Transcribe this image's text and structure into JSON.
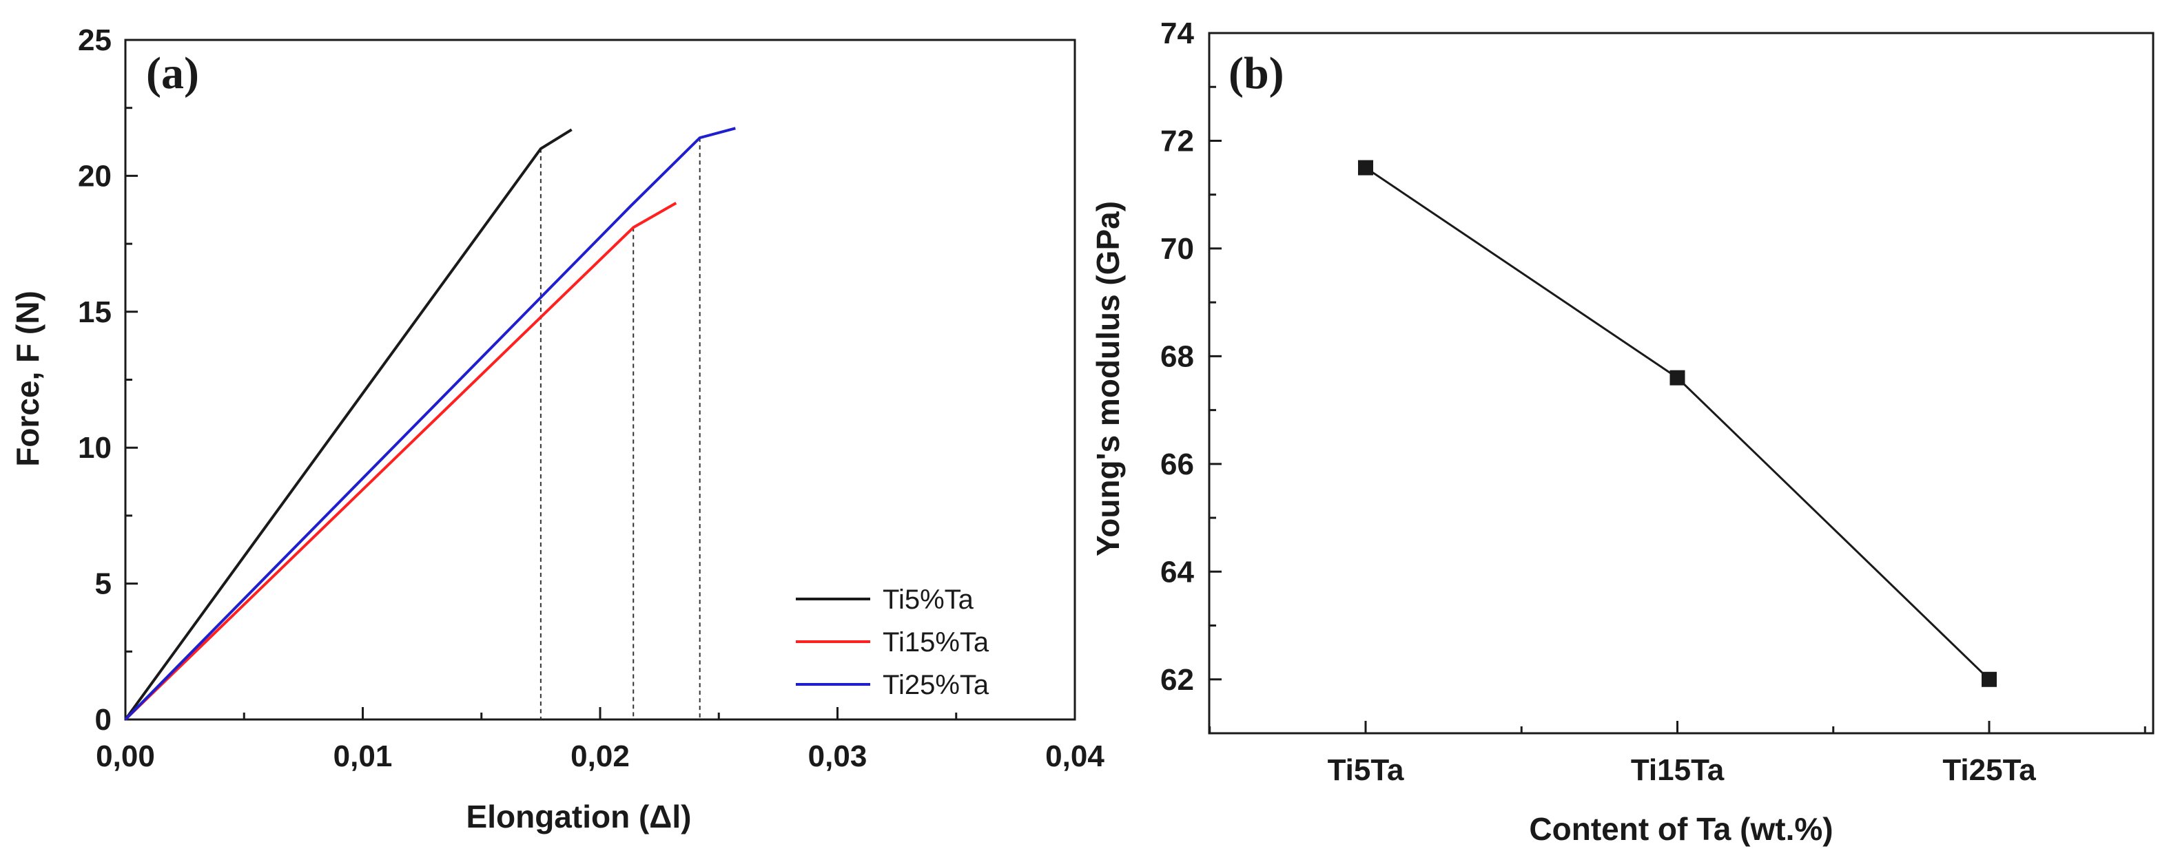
{
  "colors": {
    "axis": "#1a1a1a",
    "guide": "#333333",
    "Ti5%Ta": "#1a1a1a",
    "Ti15%Ta": "#ff2020",
    "Ti25%Ta": "#1f1fd0"
  },
  "chart_data": [
    {
      "type": "line",
      "panel_label": "(a)",
      "xlabel": "Elongation (Δl)",
      "ylabel": "Force, F (N)",
      "xlim": [
        0,
        0.04
      ],
      "ylim": [
        0,
        25
      ],
      "x_ticks": [
        0,
        0.01,
        0.02,
        0.03,
        0.04
      ],
      "x_tick_labels": [
        "0,00",
        "0,01",
        "0,02",
        "0,03",
        "0,04"
      ],
      "y_ticks": [
        0,
        5,
        10,
        15,
        20,
        25
      ],
      "y_tick_labels": [
        "0",
        "5",
        "10",
        "15",
        "20",
        "25"
      ],
      "legend_position": "bottom-right",
      "series": [
        {
          "name": "Ti5%Ta",
          "x": [
            0,
            0.0175,
            0.0188
          ],
          "y": [
            0,
            21.0,
            21.7
          ]
        },
        {
          "name": "Ti15%Ta",
          "x": [
            0,
            0.0214,
            0.0232
          ],
          "y": [
            0,
            18.1,
            19.0
          ]
        },
        {
          "name": "Ti25%Ta",
          "x": [
            0,
            0.0213,
            0.0242,
            0.0257
          ],
          "y": [
            0,
            18.9,
            21.4,
            21.75
          ]
        }
      ],
      "guide_lines_x": [
        0.0175,
        0.0214,
        0.0242
      ],
      "guide_lines_y": [
        21.0,
        18.1,
        21.4
      ]
    },
    {
      "type": "line",
      "panel_label": "(b)",
      "xlabel": "Content of Ta (wt.%)",
      "ylabel": "Young's modulus (GPa)",
      "ylim": [
        61,
        74
      ],
      "y_ticks": [
        62,
        64,
        66,
        68,
        70,
        72,
        74
      ],
      "y_tick_labels": [
        "62",
        "64",
        "66",
        "68",
        "70",
        "72",
        "74"
      ],
      "categories": [
        "Ti5Ta",
        "Ti15Ta",
        "Ti25Ta"
      ],
      "series": [
        {
          "values": [
            71.5,
            67.6,
            62.0
          ]
        }
      ]
    }
  ]
}
